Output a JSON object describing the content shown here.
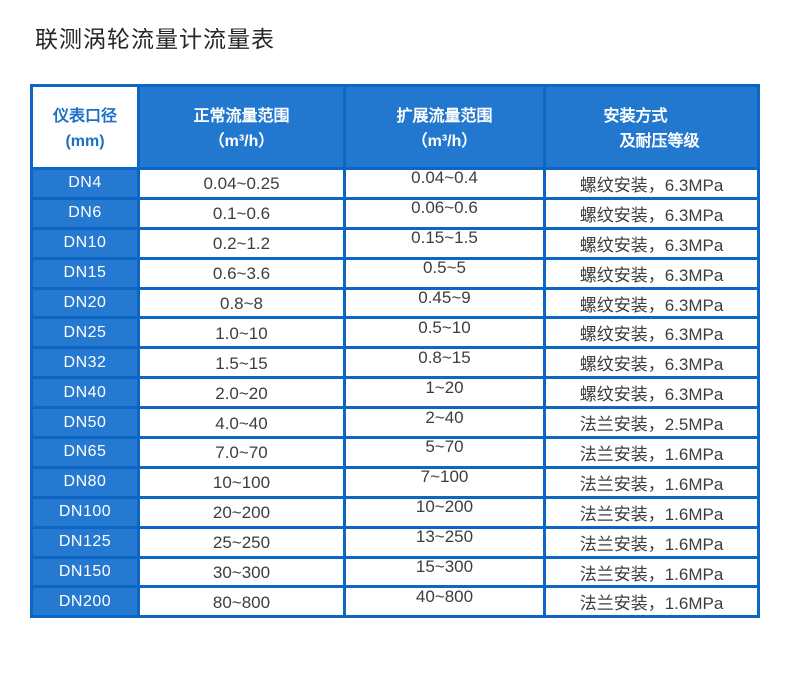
{
  "page": {
    "title": "联测涡轮流量计流量表"
  },
  "colors": {
    "table_border": "#0d65c4",
    "header_bg": "#2277ce",
    "dn_column_bg": "#2579d0",
    "header_corner_text": "#1a70c8",
    "body_text": "#3d3d3d"
  },
  "table": {
    "header": {
      "col1_line1": "仪表口径",
      "col1_line2": "(mm)",
      "col2_line1": "正常流量范围",
      "col2_line2": "（m³/h）",
      "col3_line1": "扩展流量范围",
      "col3_line2": "（m³/h）",
      "col4_line1": "安装方式",
      "col4_line2": "及耐压等级"
    },
    "rows": [
      {
        "dn": "DN4",
        "normal": "0.04~0.25",
        "extended": "0.04~0.4",
        "install": "螺纹安装，6.3MPa"
      },
      {
        "dn": "DN6",
        "normal": "0.1~0.6",
        "extended": "0.06~0.6",
        "install": "螺纹安装，6.3MPa"
      },
      {
        "dn": "DN10",
        "normal": "0.2~1.2",
        "extended": "0.15~1.5",
        "install": "螺纹安装，6.3MPa"
      },
      {
        "dn": "DN15",
        "normal": "0.6~3.6",
        "extended": "0.5~5",
        "install": "螺纹安装，6.3MPa"
      },
      {
        "dn": "DN20",
        "normal": "0.8~8",
        "extended": "0.45~9",
        "install": "螺纹安装，6.3MPa"
      },
      {
        "dn": "DN25",
        "normal": "1.0~10",
        "extended": "0.5~10",
        "install": "螺纹安装，6.3MPa"
      },
      {
        "dn": "DN32",
        "normal": "1.5~15",
        "extended": "0.8~15",
        "install": "螺纹安装，6.3MPa"
      },
      {
        "dn": "DN40",
        "normal": "2.0~20",
        "extended": "1~20",
        "install": "螺纹安装，6.3MPa"
      },
      {
        "dn": "DN50",
        "normal": "4.0~40",
        "extended": "2~40",
        "install": "法兰安装，2.5MPa"
      },
      {
        "dn": "DN65",
        "normal": "7.0~70",
        "extended": "5~70",
        "install": "法兰安装，1.6MPa"
      },
      {
        "dn": "DN80",
        "normal": "10~100",
        "extended": "7~100",
        "install": "法兰安装，1.6MPa"
      },
      {
        "dn": "DN100",
        "normal": "20~200",
        "extended": "10~200",
        "install": "法兰安装，1.6MPa"
      },
      {
        "dn": "DN125",
        "normal": "25~250",
        "extended": "13~250",
        "install": "法兰安装，1.6MPa"
      },
      {
        "dn": "DN150",
        "normal": "30~300",
        "extended": "15~300",
        "install": "法兰安装，1.6MPa"
      },
      {
        "dn": "DN200",
        "normal": "80~800",
        "extended": "40~800",
        "install": "法兰安装，1.6MPa"
      }
    ]
  }
}
